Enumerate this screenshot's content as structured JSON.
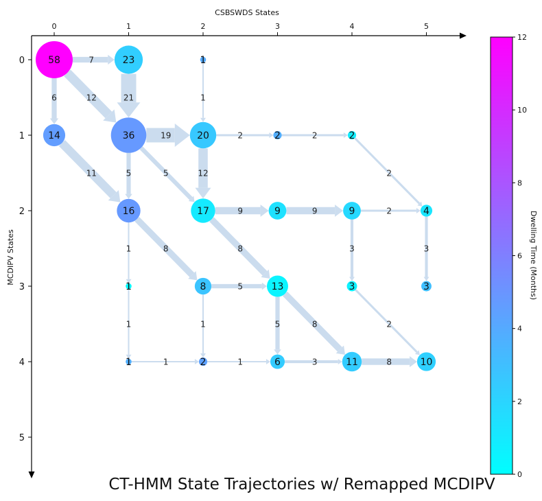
{
  "chart_data": {
    "type": "state-transition-graph",
    "title": "CT-HMM State Trajectories w/ Remapped MCDIPV",
    "xlabel": "CSBSWDS States",
    "ylabel": "MCDIPV States",
    "x_ticks": [
      "0",
      "1",
      "2",
      "3",
      "4",
      "5"
    ],
    "y_ticks": [
      "0",
      "1",
      "2",
      "3",
      "4",
      "5"
    ],
    "colorbar": {
      "label": "Dwelling Time (Months)",
      "min": 0,
      "max": 12,
      "ticks": [
        "0",
        "2",
        "4",
        "6",
        "8",
        "10",
        "12"
      ],
      "colormap": "cool",
      "color_low": "#00ffff",
      "color_high": "#ff00ff"
    },
    "nodes": [
      {
        "x": 0,
        "y": 0,
        "count": "58",
        "dwell": 12
      },
      {
        "x": 1,
        "y": 0,
        "count": "23",
        "dwell": 2.3
      },
      {
        "x": 2,
        "y": 0,
        "count": "1",
        "dwell": 4.0
      },
      {
        "x": 0,
        "y": 1,
        "count": "14",
        "dwell": 4.6
      },
      {
        "x": 1,
        "y": 1,
        "count": "36",
        "dwell": 4.8
      },
      {
        "x": 2,
        "y": 1,
        "count": "20",
        "dwell": 2.6
      },
      {
        "x": 3,
        "y": 1,
        "count": "2",
        "dwell": 3.8
      },
      {
        "x": 4,
        "y": 1,
        "count": "2",
        "dwell": 0.8
      },
      {
        "x": 1,
        "y": 2,
        "count": "16",
        "dwell": 4.8
      },
      {
        "x": 2,
        "y": 2,
        "count": "17",
        "dwell": 1.0
      },
      {
        "x": 3,
        "y": 2,
        "count": "9",
        "dwell": 1.4
      },
      {
        "x": 4,
        "y": 2,
        "count": "9",
        "dwell": 1.8
      },
      {
        "x": 5,
        "y": 2,
        "count": "4",
        "dwell": 1.2
      },
      {
        "x": 1,
        "y": 3,
        "count": "1",
        "dwell": 0.3
      },
      {
        "x": 2,
        "y": 3,
        "count": "8",
        "dwell": 2.8
      },
      {
        "x": 3,
        "y": 3,
        "count": "13",
        "dwell": 0.5
      },
      {
        "x": 4,
        "y": 3,
        "count": "3",
        "dwell": 0.6
      },
      {
        "x": 5,
        "y": 3,
        "count": "3",
        "dwell": 3.0
      },
      {
        "x": 1,
        "y": 4,
        "count": "1",
        "dwell": 3.8
      },
      {
        "x": 2,
        "y": 4,
        "count": "2",
        "dwell": 4.4
      },
      {
        "x": 3,
        "y": 4,
        "count": "6",
        "dwell": 2.4
      },
      {
        "x": 4,
        "y": 4,
        "count": "11",
        "dwell": 2.4
      },
      {
        "x": 5,
        "y": 4,
        "count": "10",
        "dwell": 2.2
      }
    ],
    "edges": [
      {
        "from": [
          0,
          0
        ],
        "to": [
          1,
          0
        ],
        "count": "7"
      },
      {
        "from": [
          0,
          0
        ],
        "to": [
          0,
          1
        ],
        "count": "6"
      },
      {
        "from": [
          0,
          0
        ],
        "to": [
          1,
          1
        ],
        "count": "12"
      },
      {
        "from": [
          1,
          0
        ],
        "to": [
          1,
          1
        ],
        "count": "21"
      },
      {
        "from": [
          2,
          0
        ],
        "to": [
          2,
          1
        ],
        "count": "1"
      },
      {
        "from": [
          0,
          1
        ],
        "to": [
          1,
          2
        ],
        "count": "11"
      },
      {
        "from": [
          1,
          1
        ],
        "to": [
          2,
          1
        ],
        "count": "19"
      },
      {
        "from": [
          1,
          1
        ],
        "to": [
          1,
          2
        ],
        "count": "5"
      },
      {
        "from": [
          1,
          1
        ],
        "to": [
          2,
          2
        ],
        "count": "5"
      },
      {
        "from": [
          2,
          1
        ],
        "to": [
          3,
          1
        ],
        "count": "2"
      },
      {
        "from": [
          3,
          1
        ],
        "to": [
          4,
          1
        ],
        "count": "2"
      },
      {
        "from": [
          2,
          1
        ],
        "to": [
          2,
          2
        ],
        "count": "12"
      },
      {
        "from": [
          4,
          1
        ],
        "to": [
          5,
          2
        ],
        "count": "2"
      },
      {
        "from": [
          1,
          2
        ],
        "to": [
          1,
          3
        ],
        "count": "1"
      },
      {
        "from": [
          1,
          2
        ],
        "to": [
          2,
          3
        ],
        "count": "8"
      },
      {
        "from": [
          2,
          2
        ],
        "to": [
          3,
          2
        ],
        "count": "9"
      },
      {
        "from": [
          3,
          2
        ],
        "to": [
          4,
          2
        ],
        "count": "9"
      },
      {
        "from": [
          4,
          2
        ],
        "to": [
          5,
          2
        ],
        "count": "2"
      },
      {
        "from": [
          2,
          2
        ],
        "to": [
          3,
          3
        ],
        "count": "8"
      },
      {
        "from": [
          4,
          2
        ],
        "to": [
          4,
          3
        ],
        "count": "3"
      },
      {
        "from": [
          5,
          2
        ],
        "to": [
          5,
          3
        ],
        "count": "3"
      },
      {
        "from": [
          2,
          3
        ],
        "to": [
          3,
          3
        ],
        "count": "5"
      },
      {
        "from": [
          1,
          3
        ],
        "to": [
          1,
          4
        ],
        "count": "1"
      },
      {
        "from": [
          2,
          3
        ],
        "to": [
          2,
          4
        ],
        "count": "1"
      },
      {
        "from": [
          3,
          3
        ],
        "to": [
          3,
          4
        ],
        "count": "5"
      },
      {
        "from": [
          3,
          3
        ],
        "to": [
          4,
          4
        ],
        "count": "8"
      },
      {
        "from": [
          4,
          3
        ],
        "to": [
          5,
          4
        ],
        "count": "2"
      },
      {
        "from": [
          1,
          4
        ],
        "to": [
          2,
          4
        ],
        "count": "1"
      },
      {
        "from": [
          2,
          4
        ],
        "to": [
          3,
          4
        ],
        "count": "1"
      },
      {
        "from": [
          3,
          4
        ],
        "to": [
          4,
          4
        ],
        "count": "3"
      },
      {
        "from": [
          4,
          4
        ],
        "to": [
          5,
          4
        ],
        "count": "8"
      }
    ]
  }
}
